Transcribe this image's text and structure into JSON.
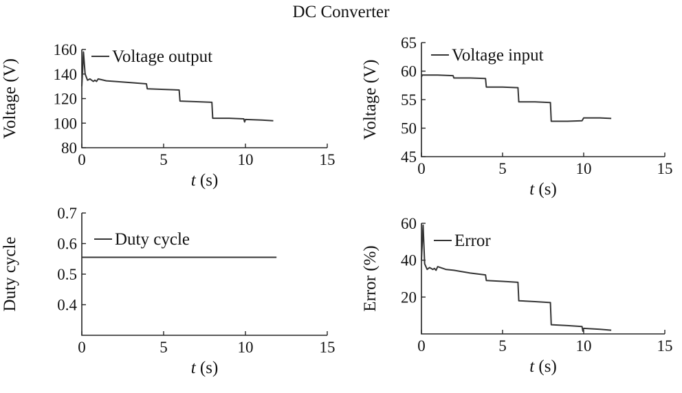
{
  "figure_title": "DC Converter",
  "chart_data": [
    {
      "type": "line",
      "title": "",
      "xlabel_var": "t",
      "xlabel_unit": " (s)",
      "ylabel": "Voltage (V)",
      "xlim": [
        0,
        15
      ],
      "ylim": [
        80,
        160
      ],
      "xticks": [
        0,
        5,
        10,
        15
      ],
      "yticks": [
        80,
        100,
        120,
        140,
        160
      ],
      "grid": false,
      "legend_position": "top-left",
      "series": [
        {
          "name": "Voltage output",
          "x": [
            0,
            0.1,
            0.2,
            0.35,
            0.5,
            0.7,
            0.8,
            0.9,
            1.0,
            1.5,
            2.0,
            3.0,
            3.95,
            4.0,
            5.0,
            5.95,
            6.0,
            7.0,
            7.95,
            8.0,
            9.0,
            9.9,
            9.95,
            10.0,
            11.0,
            11.7
          ],
          "values": [
            130,
            158,
            140,
            135,
            136,
            134,
            135,
            134,
            136,
            134.5,
            134,
            133,
            132,
            128,
            127.5,
            127,
            118,
            117.5,
            117,
            104,
            104,
            103.5,
            101,
            103,
            102.5,
            102
          ]
        }
      ]
    },
    {
      "type": "line",
      "title": "",
      "xlabel_var": "t",
      "xlabel_unit": " (s)",
      "ylabel": "Voltage (V)",
      "xlim": [
        0,
        15
      ],
      "ylim": [
        45,
        65
      ],
      "xticks": [
        0,
        5,
        10,
        15
      ],
      "yticks": [
        45,
        50,
        55,
        60,
        65
      ],
      "grid": false,
      "legend_position": "top-left",
      "series": [
        {
          "name": "Voltage input",
          "x": [
            0,
            0.05,
            1.0,
            1.95,
            2.0,
            3.0,
            3.95,
            4.0,
            5.0,
            5.95,
            6.0,
            7.0,
            7.95,
            8.0,
            9.0,
            9.9,
            10.0,
            11.0,
            11.7
          ],
          "values": [
            59,
            59.3,
            59.3,
            59.2,
            58.8,
            58.8,
            58.7,
            57.2,
            57.2,
            57.1,
            54.6,
            54.6,
            54.5,
            51.2,
            51.2,
            51.3,
            51.8,
            51.8,
            51.7
          ]
        }
      ]
    },
    {
      "type": "line",
      "title": "",
      "xlabel_var": "t",
      "xlabel_unit": " (s)",
      "ylabel": "Duty cycle",
      "xlim": [
        0,
        15
      ],
      "ylim": [
        0.3,
        0.7
      ],
      "xticks": [
        0,
        5,
        10,
        15
      ],
      "yticks": [
        0.4,
        0.5,
        0.6,
        0.7
      ],
      "grid": false,
      "legend_position": "top-left",
      "series": [
        {
          "name": "Duty cycle",
          "x": [
            0,
            11.9
          ],
          "values": [
            0.555,
            0.555
          ]
        }
      ]
    },
    {
      "type": "line",
      "title": "",
      "xlabel_var": "t",
      "xlabel_unit": " (s)",
      "ylabel": "Error (%)",
      "xlim": [
        0,
        15
      ],
      "ylim": [
        0,
        60
      ],
      "xticks": [
        0,
        5,
        10,
        15
      ],
      "yticks": [
        20,
        40,
        60
      ],
      "grid": false,
      "legend_position": "top-left",
      "series": [
        {
          "name": "Error",
          "x": [
            0,
            0.1,
            0.2,
            0.35,
            0.5,
            0.7,
            0.8,
            0.9,
            1.0,
            1.5,
            2.0,
            3.0,
            3.95,
            4.0,
            5.0,
            5.95,
            6.0,
            7.0,
            7.95,
            8.0,
            9.0,
            9.9,
            9.95,
            10.0,
            11.0,
            11.7
          ],
          "values": [
            40,
            59,
            38,
            35,
            36,
            35,
            35.5,
            34.5,
            36.5,
            35,
            34.5,
            33,
            32,
            29,
            28.5,
            28,
            18,
            17.5,
            17,
            5,
            4.5,
            4,
            1.5,
            3,
            2.5,
            2
          ]
        }
      ]
    }
  ]
}
